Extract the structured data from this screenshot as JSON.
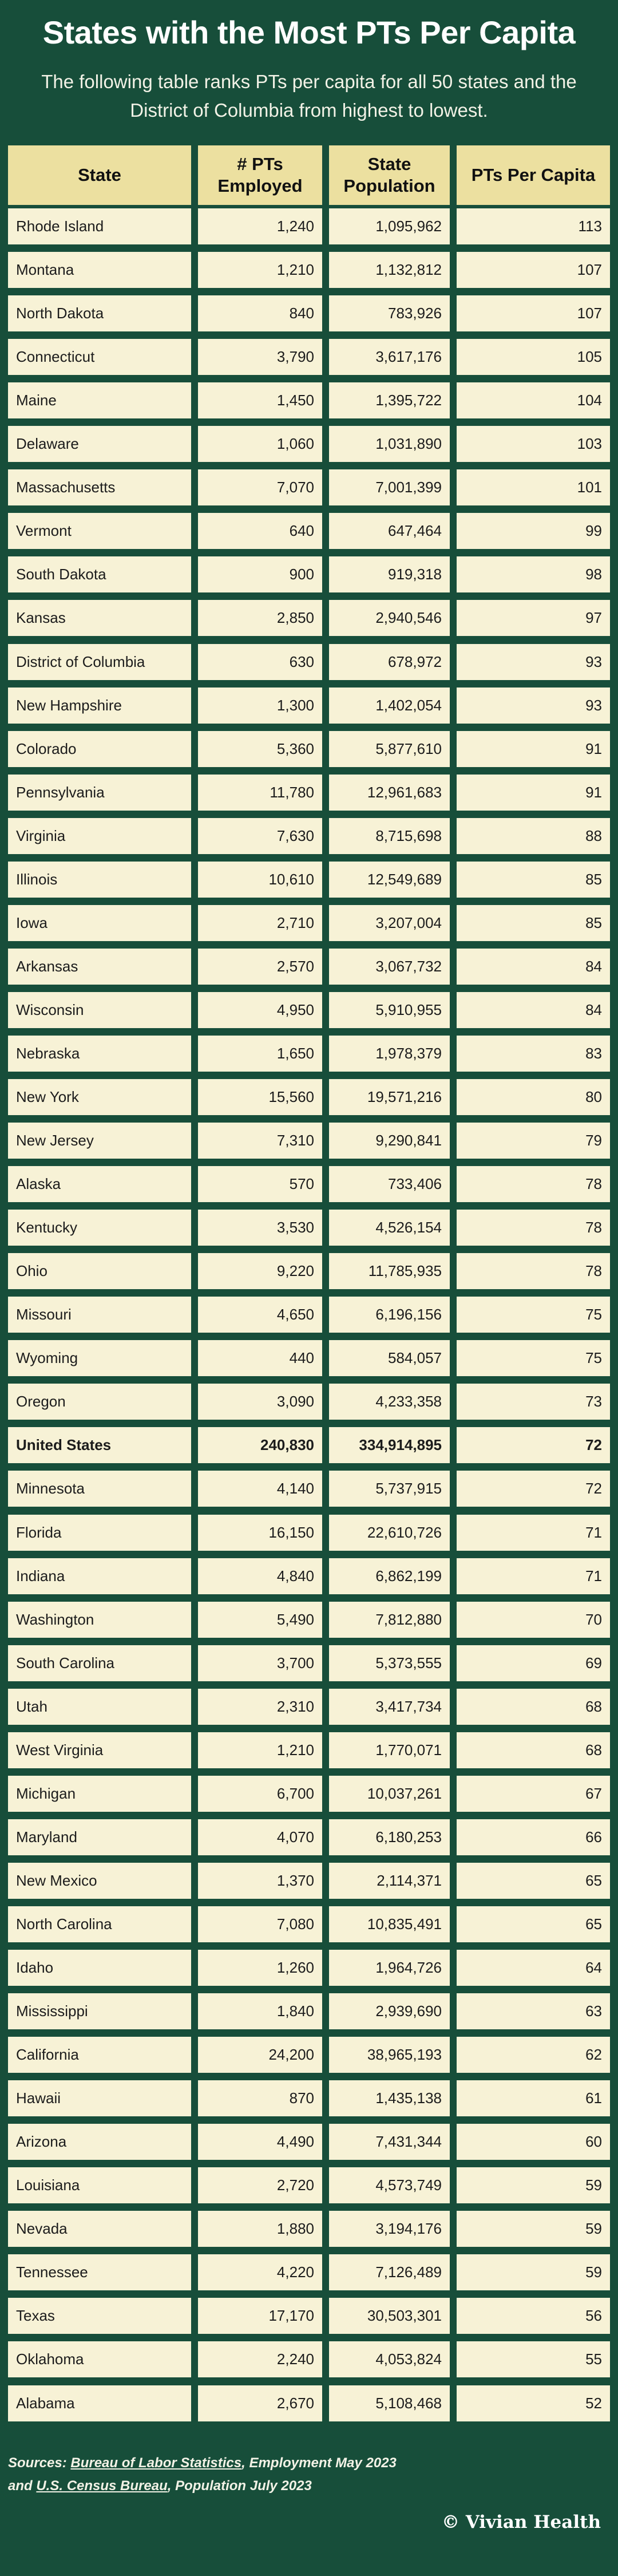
{
  "title": "States with the Most PTs Per Capita",
  "subtitle": "The following table ranks PTs per capita for all 50 states and the District of Columbia from highest to lowest.",
  "columns": [
    "State",
    "# PTs Employed",
    "State Population",
    "PTs Per Capita"
  ],
  "rows": [
    {
      "state": "Rhode Island",
      "employed": "1,240",
      "population": "1,095,962",
      "per_capita": "113"
    },
    {
      "state": "Montana",
      "employed": "1,210",
      "population": "1,132,812",
      "per_capita": "107"
    },
    {
      "state": "North Dakota",
      "employed": "840",
      "population": "783,926",
      "per_capita": "107"
    },
    {
      "state": "Connecticut",
      "employed": "3,790",
      "population": "3,617,176",
      "per_capita": "105"
    },
    {
      "state": "Maine",
      "employed": "1,450",
      "population": "1,395,722",
      "per_capita": "104"
    },
    {
      "state": "Delaware",
      "employed": "1,060",
      "population": "1,031,890",
      "per_capita": "103"
    },
    {
      "state": "Massachusetts",
      "employed": "7,070",
      "population": "7,001,399",
      "per_capita": "101"
    },
    {
      "state": "Vermont",
      "employed": "640",
      "population": "647,464",
      "per_capita": "99"
    },
    {
      "state": "South Dakota",
      "employed": "900",
      "population": "919,318",
      "per_capita": "98"
    },
    {
      "state": "Kansas",
      "employed": "2,850",
      "population": "2,940,546",
      "per_capita": "97"
    },
    {
      "state": "District of Columbia",
      "employed": "630",
      "population": "678,972",
      "per_capita": "93"
    },
    {
      "state": "New Hampshire",
      "employed": "1,300",
      "population": "1,402,054",
      "per_capita": "93"
    },
    {
      "state": "Colorado",
      "employed": "5,360",
      "population": "5,877,610",
      "per_capita": "91"
    },
    {
      "state": "Pennsylvania",
      "employed": "11,780",
      "population": "12,961,683",
      "per_capita": "91"
    },
    {
      "state": "Virginia",
      "employed": "7,630",
      "population": "8,715,698",
      "per_capita": "88"
    },
    {
      "state": "Illinois",
      "employed": "10,610",
      "population": "12,549,689",
      "per_capita": "85"
    },
    {
      "state": "Iowa",
      "employed": "2,710",
      "population": "3,207,004",
      "per_capita": "85"
    },
    {
      "state": "Arkansas",
      "employed": "2,570",
      "population": "3,067,732",
      "per_capita": "84"
    },
    {
      "state": "Wisconsin",
      "employed": "4,950",
      "population": "5,910,955",
      "per_capita": "84"
    },
    {
      "state": "Nebraska",
      "employed": "1,650",
      "population": "1,978,379",
      "per_capita": "83"
    },
    {
      "state": "New York",
      "employed": "15,560",
      "population": "19,571,216",
      "per_capita": "80"
    },
    {
      "state": "New Jersey",
      "employed": "7,310",
      "population": "9,290,841",
      "per_capita": "79"
    },
    {
      "state": "Alaska",
      "employed": "570",
      "population": "733,406",
      "per_capita": "78"
    },
    {
      "state": "Kentucky",
      "employed": "3,530",
      "population": "4,526,154",
      "per_capita": "78"
    },
    {
      "state": "Ohio",
      "employed": "9,220",
      "population": "11,785,935",
      "per_capita": "78"
    },
    {
      "state": "Missouri",
      "employed": "4,650",
      "population": "6,196,156",
      "per_capita": "75"
    },
    {
      "state": "Wyoming",
      "employed": "440",
      "population": "584,057",
      "per_capita": "75"
    },
    {
      "state": "Oregon",
      "employed": "3,090",
      "population": "4,233,358",
      "per_capita": "73"
    },
    {
      "state": "United States",
      "employed": "240,830",
      "population": "334,914,895",
      "per_capita": "72",
      "highlight": true
    },
    {
      "state": "Minnesota",
      "employed": "4,140",
      "population": "5,737,915",
      "per_capita": "72"
    },
    {
      "state": "Florida",
      "employed": "16,150",
      "population": "22,610,726",
      "per_capita": "71"
    },
    {
      "state": "Indiana",
      "employed": "4,840",
      "population": "6,862,199",
      "per_capita": "71"
    },
    {
      "state": "Washington",
      "employed": "5,490",
      "population": "7,812,880",
      "per_capita": "70"
    },
    {
      "state": "South Carolina",
      "employed": "3,700",
      "population": "5,373,555",
      "per_capita": "69"
    },
    {
      "state": "Utah",
      "employed": "2,310",
      "population": "3,417,734",
      "per_capita": "68"
    },
    {
      "state": "West Virginia",
      "employed": "1,210",
      "population": "1,770,071",
      "per_capita": "68"
    },
    {
      "state": "Michigan",
      "employed": "6,700",
      "population": "10,037,261",
      "per_capita": "67"
    },
    {
      "state": "Maryland",
      "employed": "4,070",
      "population": "6,180,253",
      "per_capita": "66"
    },
    {
      "state": "New Mexico",
      "employed": "1,370",
      "population": "2,114,371",
      "per_capita": "65"
    },
    {
      "state": "North Carolina",
      "employed": "7,080",
      "population": "10,835,491",
      "per_capita": "65"
    },
    {
      "state": "Idaho",
      "employed": "1,260",
      "population": "1,964,726",
      "per_capita": "64"
    },
    {
      "state": "Mississippi",
      "employed": "1,840",
      "population": "2,939,690",
      "per_capita": "63"
    },
    {
      "state": "California",
      "employed": "24,200",
      "population": "38,965,193",
      "per_capita": "62"
    },
    {
      "state": "Hawaii",
      "employed": "870",
      "population": "1,435,138",
      "per_capita": "61"
    },
    {
      "state": "Arizona",
      "employed": "4,490",
      "population": "7,431,344",
      "per_capita": "60"
    },
    {
      "state": "Louisiana",
      "employed": "2,720",
      "population": "4,573,749",
      "per_capita": "59"
    },
    {
      "state": "Nevada",
      "employed": "1,880",
      "population": "3,194,176",
      "per_capita": "59"
    },
    {
      "state": "Tennessee",
      "employed": "4,220",
      "population": "7,126,489",
      "per_capita": "59"
    },
    {
      "state": "Texas",
      "employed": "17,170",
      "population": "30,503,301",
      "per_capita": "56"
    },
    {
      "state": "Oklahoma",
      "employed": "2,240",
      "population": "4,053,824",
      "per_capita": "55"
    },
    {
      "state": "Alabama",
      "employed": "2,670",
      "population": "5,108,468",
      "per_capita": "52"
    }
  ],
  "sources": {
    "label": "Sources:",
    "bls_link": "Bureau of Labor Statistics",
    "bls_detail": ", Employment May 2023",
    "and": "and",
    "census_link": "U.S. Census Bureau",
    "census_detail": ", Population July 2023"
  },
  "brand": "© Vivian Health",
  "colors": {
    "background": "#174e3a",
    "header_cell": "#ece0a0",
    "body_cell": "#f7f2d6"
  }
}
